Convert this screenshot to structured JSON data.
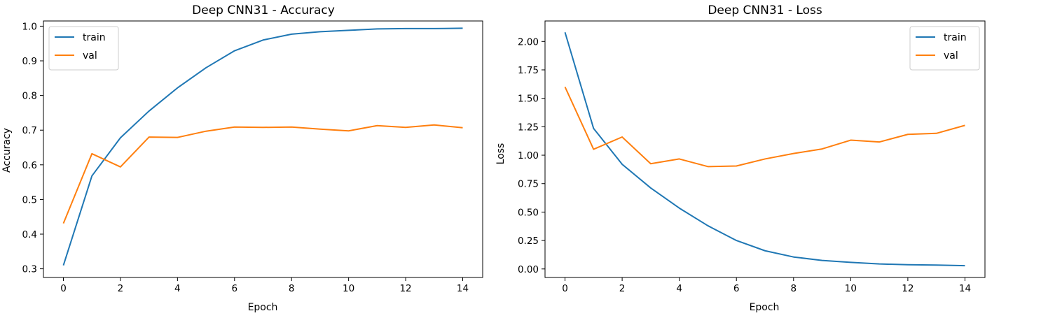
{
  "colors": {
    "train": "#1f77b4",
    "val": "#ff7f0e"
  },
  "chart_data": [
    {
      "type": "line",
      "title": "Deep CNN31 - Accuracy",
      "xlabel": "Epoch",
      "ylabel": "Accuracy",
      "xlim": [
        -0.7,
        14.7
      ],
      "ylim": [
        0.275,
        1.015
      ],
      "xticks": [
        0,
        2,
        4,
        6,
        8,
        10,
        12,
        14
      ],
      "yticks": [
        0.3,
        0.4,
        0.5,
        0.6,
        0.7,
        0.8,
        0.9,
        1.0
      ],
      "ytick_labels": [
        "0.3",
        "0.4",
        "0.5",
        "0.6",
        "0.7",
        "0.8",
        "0.9",
        "1.0"
      ],
      "legend_position": "upper left",
      "grid": false,
      "x": [
        0,
        1,
        2,
        3,
        4,
        5,
        6,
        7,
        8,
        9,
        10,
        11,
        12,
        13,
        14
      ],
      "series": [
        {
          "name": "train",
          "values": [
            0.31,
            0.568,
            0.678,
            0.755,
            0.822,
            0.88,
            0.929,
            0.96,
            0.977,
            0.984,
            0.988,
            0.992,
            0.993,
            0.993,
            0.994
          ]
        },
        {
          "name": "val",
          "values": [
            0.431,
            0.632,
            0.594,
            0.68,
            0.679,
            0.697,
            0.709,
            0.708,
            0.709,
            0.703,
            0.698,
            0.713,
            0.708,
            0.715,
            0.707
          ]
        }
      ]
    },
    {
      "type": "line",
      "title": "Deep CNN31 - Loss",
      "xlabel": "Epoch",
      "ylabel": "Loss",
      "xlim": [
        -0.7,
        14.7
      ],
      "ylim": [
        -0.075,
        2.18
      ],
      "xticks": [
        0,
        2,
        4,
        6,
        8,
        10,
        12,
        14
      ],
      "yticks": [
        0,
        0.25,
        0.5,
        0.75,
        1.0,
        1.25,
        1.5,
        1.75,
        2.0
      ],
      "ytick_labels": [
        "0.00",
        "0.25",
        "0.50",
        "0.75",
        "1.00",
        "1.25",
        "1.50",
        "1.75",
        "2.00"
      ],
      "legend_position": "upper right",
      "grid": false,
      "x": [
        0,
        1,
        2,
        3,
        4,
        5,
        6,
        7,
        8,
        9,
        10,
        11,
        12,
        13,
        14
      ],
      "series": [
        {
          "name": "train",
          "values": [
            2.08,
            1.235,
            0.92,
            0.712,
            0.535,
            0.38,
            0.25,
            0.16,
            0.105,
            0.075,
            0.058,
            0.044,
            0.037,
            0.034,
            0.029
          ]
        },
        {
          "name": "val",
          "values": [
            1.6,
            1.052,
            1.16,
            0.925,
            0.967,
            0.9,
            0.905,
            0.967,
            1.015,
            1.055,
            1.132,
            1.116,
            1.183,
            1.192,
            1.262
          ]
        }
      ]
    }
  ]
}
